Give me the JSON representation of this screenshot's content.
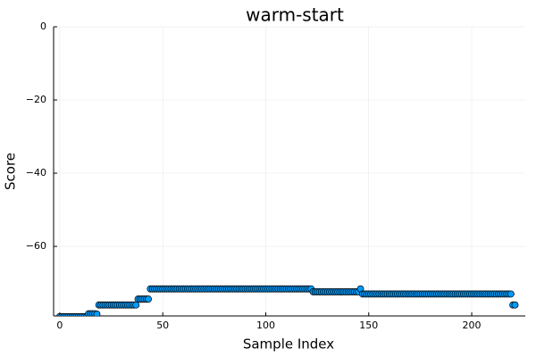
{
  "chart_data": {
    "type": "scatter",
    "title": "warm-start",
    "xlabel": "Sample Index",
    "ylabel": "Score",
    "xlim": [
      -3,
      226
    ],
    "ylim": [
      -79,
      0
    ],
    "x_ticks": [
      0,
      50,
      100,
      150,
      200
    ],
    "y_ticks": [
      0,
      -20,
      -40,
      -60
    ],
    "grid": true,
    "legend": "none",
    "marker_color": "#009af9",
    "marker_edge_color": "#000000",
    "series": [
      {
        "segments": [
          {
            "x_start": 0,
            "x_end": 13,
            "y": -79.2
          },
          {
            "x_start": 14,
            "x_end": 17,
            "y": -78.4
          },
          {
            "x_start": 18,
            "x_end": 18,
            "y": -78.5
          },
          {
            "x_start": 19,
            "x_end": 37,
            "y": -76.0
          },
          {
            "x_start": 38,
            "x_end": 43,
            "y": -74.4
          },
          {
            "x_start": 44,
            "x_end": 122,
            "y": -71.6
          },
          {
            "x_start": 123,
            "x_end": 145,
            "y": -72.4
          },
          {
            "x_start": 146,
            "x_end": 146,
            "y": -71.6
          },
          {
            "x_start": 147,
            "x_end": 219,
            "y": -73.0
          },
          {
            "x_start": 220,
            "x_end": 221,
            "y": -76.0
          }
        ]
      }
    ]
  }
}
